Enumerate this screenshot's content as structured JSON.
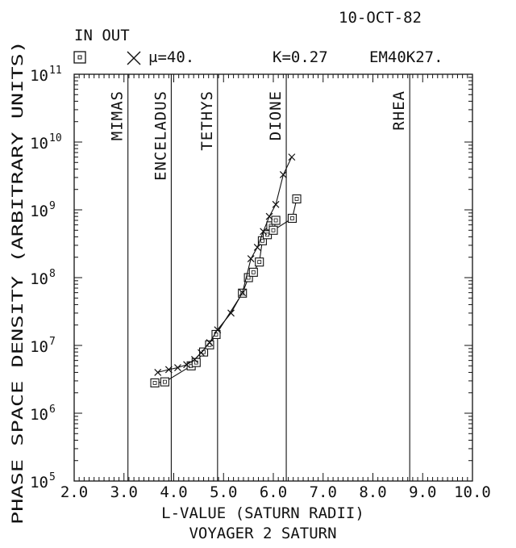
{
  "chart_data": {
    "type": "scatter",
    "date": "10-OCT-82",
    "legend": {
      "heading": "IN OUT",
      "in_symbol": "square",
      "out_symbol": "cross",
      "mu_label": "μ=40.",
      "k_label": "K=0.27",
      "run_id": "EM40K27."
    },
    "xlabel": "L-VALUE (SATURN RADII)",
    "subtitle": "VOYAGER 2 SATURN",
    "ylabel": "PHASE SPACE DENSITY (ARBITRARY UNITS)",
    "xlim": [
      2.0,
      10.0
    ],
    "ylim": [
      100000,
      100000000000
    ],
    "yscale": "log",
    "x_ticks": [
      "2.0",
      "3.0",
      "4.0",
      "5.0",
      "6.0",
      "7.0",
      "8.0",
      "9.0",
      "10.0"
    ],
    "y_ticks": [
      {
        "base": "10",
        "exp": "5"
      },
      {
        "base": "10",
        "exp": "6"
      },
      {
        "base": "10",
        "exp": "7"
      },
      {
        "base": "10",
        "exp": "8"
      },
      {
        "base": "10",
        "exp": "9"
      },
      {
        "base": "10",
        "exp": "10"
      },
      {
        "base": "10",
        "exp": "11"
      }
    ],
    "moons": [
      {
        "name": "MIMAS",
        "L": 3.08
      },
      {
        "name": "ENCELADUS",
        "L": 3.95
      },
      {
        "name": "TETHYS",
        "L": 4.88
      },
      {
        "name": "DIONE",
        "L": 6.26
      },
      {
        "name": "RHEA",
        "L": 8.74
      }
    ],
    "series": [
      {
        "marker": "square",
        "x": [
          3.62,
          3.82,
          4.35,
          4.45,
          4.6,
          4.72,
          4.85,
          5.38,
          5.5,
          5.6,
          5.72,
          5.78,
          5.88,
          5.95,
          6.05,
          6.0,
          6.38,
          6.47
        ],
        "y": [
          2800000,
          2900000,
          5000000,
          5600000,
          8000000,
          10200000,
          14500000,
          59000000,
          100000000,
          120000000,
          170000000,
          350000000,
          430000000,
          580000000,
          700000000,
          500000000,
          750000000,
          1450000000
        ]
      },
      {
        "marker": "cross",
        "x": [
          3.68,
          3.9,
          4.08,
          4.26,
          4.42,
          4.55,
          4.72,
          4.88,
          5.15,
          5.38,
          5.55,
          5.68,
          5.8,
          5.92,
          6.05,
          6.2,
          6.37
        ],
        "y": [
          4000000,
          4400000,
          4700000,
          5200000,
          6200000,
          7800000,
          11000000,
          17000000,
          30000000,
          60000000,
          190000000,
          280000000,
          480000000,
          800000000,
          1200000000,
          3300000000,
          6000000000
        ]
      }
    ]
  }
}
